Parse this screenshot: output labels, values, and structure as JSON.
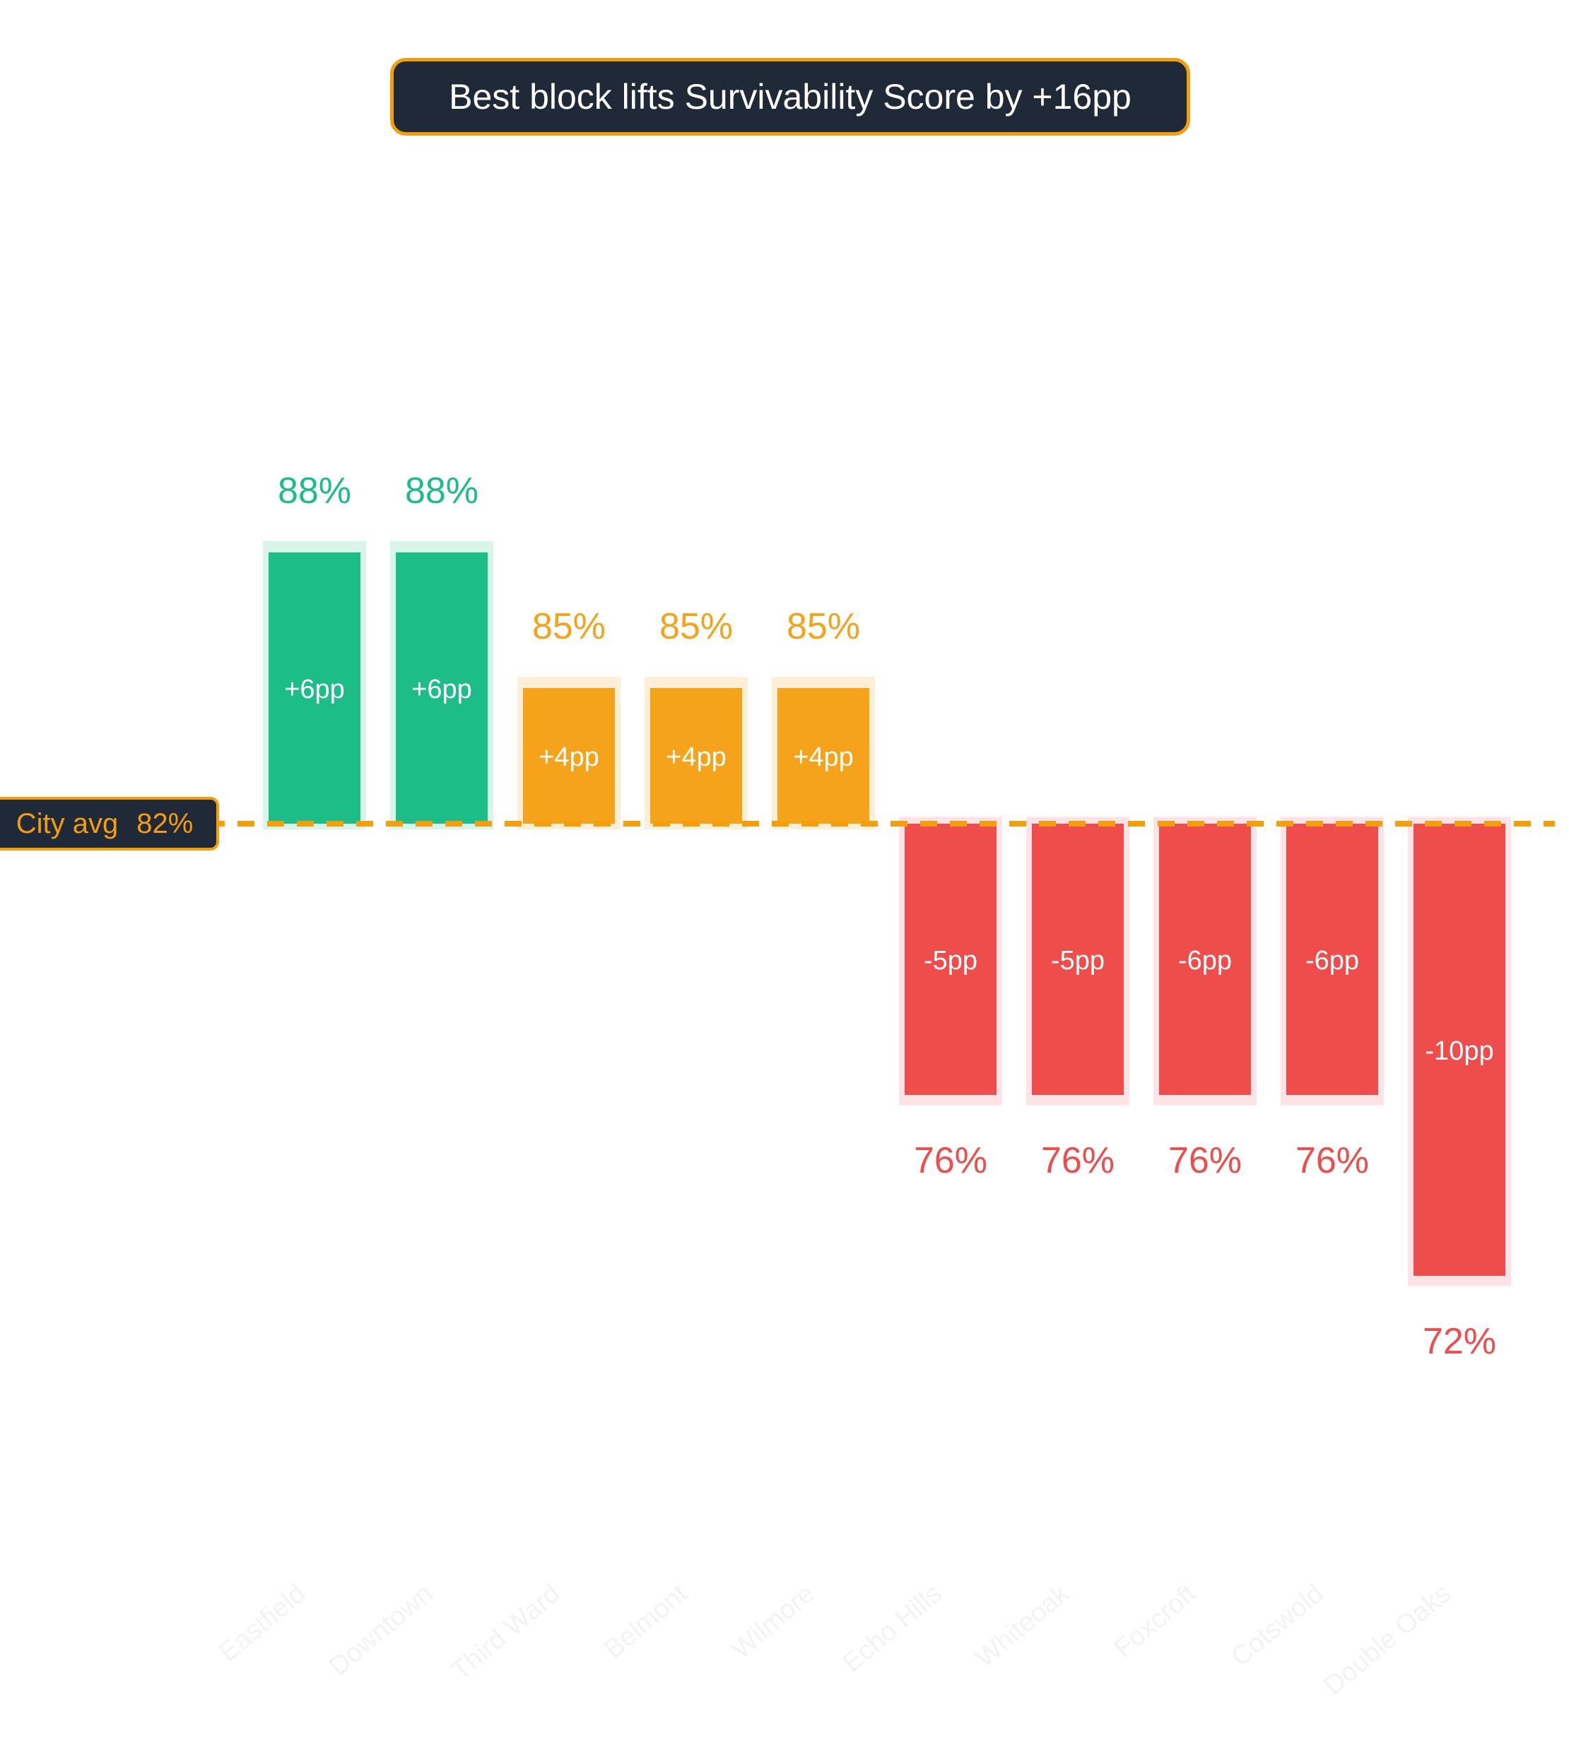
{
  "title": "Best block lifts Survivability Score by +16pp",
  "reference": {
    "label": "City avg",
    "value_label": "82%",
    "color": "#f59e0b"
  },
  "colors": {
    "above_high": "#1dbd87",
    "above_mid": "#f4a31b",
    "below": "#ef4c4c",
    "avg": "#f59e0b",
    "title_bg": "#1f2937"
  },
  "chart_data": {
    "type": "bar",
    "title": "Best block lifts Survivability Score by +16pp",
    "categories": [
      "Eastfield",
      "Downtown",
      "Third Ward",
      "Belmont",
      "Wilmore",
      "Echo Hills",
      "Whiteoak",
      "Foxcroft",
      "Cotswold",
      "Double Oaks"
    ],
    "values": [
      88,
      88,
      85,
      85,
      85,
      76,
      76,
      76,
      76,
      72
    ],
    "value_labels": [
      "88%",
      "88%",
      "85%",
      "85%",
      "85%",
      "76%",
      "76%",
      "76%",
      "76%",
      "72%"
    ],
    "delta_labels": [
      "+6pp",
      "+6pp",
      "+4pp",
      "+4pp",
      "+4pp",
      "-5pp",
      "-5pp",
      "-6pp",
      "-6pp",
      "-10pp"
    ],
    "baseline": 82,
    "baseline_label": "City avg  82%",
    "xlabel": "",
    "ylabel": "",
    "grid": false,
    "legend": "none"
  }
}
